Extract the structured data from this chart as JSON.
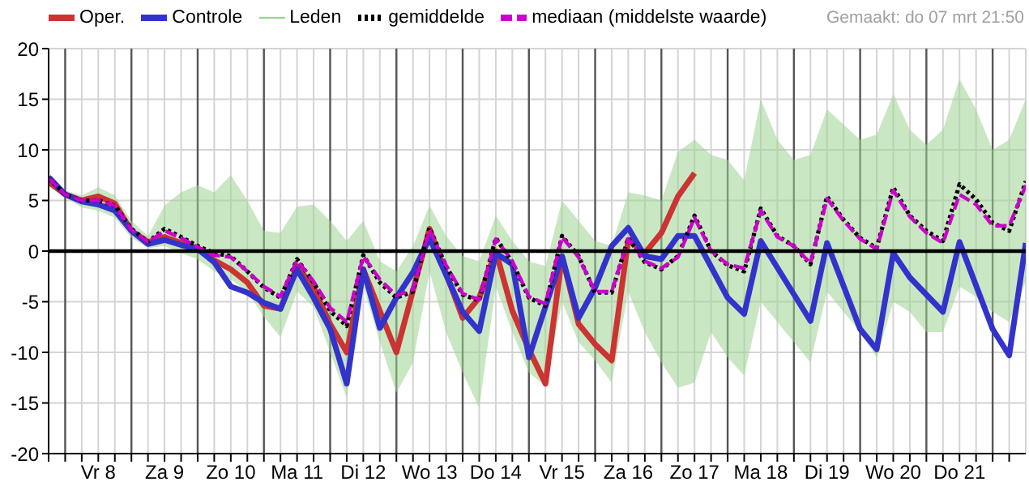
{
  "chart_data": {
    "type": "line",
    "annotations": [
      "Gemaakt: do 07 mrt 21:50"
    ],
    "xlim": [
      "--03-07T18:00",
      "--03-22T12:00"
    ],
    "xticks": [
      {
        "value": "--03-07T18:00",
        "label": null
      },
      {
        "value": "--03-08T00:00",
        "label": null
      },
      {
        "value": "--03-08T06:00",
        "label": null
      },
      {
        "value": "--03-08T12:00",
        "label": "Vr 8"
      },
      {
        "value": "--03-08T18:00",
        "label": null
      },
      {
        "value": "--03-09T00:00",
        "label": null
      },
      {
        "value": "--03-09T06:00",
        "label": null
      },
      {
        "value": "--03-09T12:00",
        "label": "Za 9"
      },
      {
        "value": "--03-09T18:00",
        "label": null
      },
      {
        "value": "--03-10T00:00",
        "label": null
      },
      {
        "value": "--03-10T06:00",
        "label": null
      },
      {
        "value": "--03-10T12:00",
        "label": "Zo 10"
      },
      {
        "value": "--03-10T18:00",
        "label": null
      },
      {
        "value": "--03-11T00:00",
        "label": null
      },
      {
        "value": "--03-11T06:00",
        "label": null
      },
      {
        "value": "--03-11T12:00",
        "label": "Ma 11"
      },
      {
        "value": "--03-11T18:00",
        "label": null
      },
      {
        "value": "--03-12T00:00",
        "label": null
      },
      {
        "value": "--03-12T06:00",
        "label": null
      },
      {
        "value": "--03-12T12:00",
        "label": "Di 12"
      },
      {
        "value": "--03-12T18:00",
        "label": null
      },
      {
        "value": "--03-13T00:00",
        "label": null
      },
      {
        "value": "--03-13T06:00",
        "label": null
      },
      {
        "value": "--03-13T12:00",
        "label": "Wo 13"
      },
      {
        "value": "--03-13T18:00",
        "label": null
      },
      {
        "value": "--03-14T00:00",
        "label": null
      },
      {
        "value": "--03-14T06:00",
        "label": null
      },
      {
        "value": "--03-14T12:00",
        "label": "Do 14"
      },
      {
        "value": "--03-14T18:00",
        "label": null
      },
      {
        "value": "--03-15T00:00",
        "label": null
      },
      {
        "value": "--03-15T06:00",
        "label": null
      },
      {
        "value": "--03-15T12:00",
        "label": "Vr 15"
      },
      {
        "value": "--03-15T18:00",
        "label": null
      },
      {
        "value": "--03-16T00:00",
        "label": null
      },
      {
        "value": "--03-16T06:00",
        "label": null
      },
      {
        "value": "--03-16T12:00",
        "label": "Za 16"
      },
      {
        "value": "--03-16T18:00",
        "label": null
      },
      {
        "value": "--03-17T00:00",
        "label": null
      },
      {
        "value": "--03-17T06:00",
        "label": null
      },
      {
        "value": "--03-17T12:00",
        "label": "Zo 17"
      },
      {
        "value": "--03-17T18:00",
        "label": null
      },
      {
        "value": "--03-18T00:00",
        "label": null
      },
      {
        "value": "--03-18T06:00",
        "label": null
      },
      {
        "value": "--03-18T12:00",
        "label": "Ma 18"
      },
      {
        "value": "--03-18T18:00",
        "label": null
      },
      {
        "value": "--03-19T00:00",
        "label": null
      },
      {
        "value": "--03-19T06:00",
        "label": null
      },
      {
        "value": "--03-19T12:00",
        "label": "Di 19"
      },
      {
        "value": "--03-19T18:00",
        "label": null
      },
      {
        "value": "--03-20T00:00",
        "label": null
      },
      {
        "value": "--03-20T06:00",
        "label": null
      },
      {
        "value": "--03-20T12:00",
        "label": "Wo 20"
      },
      {
        "value": "--03-20T18:00",
        "label": null
      },
      {
        "value": "--03-21T00:00",
        "label": null
      },
      {
        "value": "--03-21T06:00",
        "label": null
      },
      {
        "value": "--03-21T12:00",
        "label": "Do 21"
      },
      {
        "value": "--03-21T18:00",
        "label": null
      },
      {
        "value": "--03-22T00:00",
        "label": null
      },
      {
        "value": "--03-22T06:00",
        "label": null
      }
    ],
    "x": [
      "--03-07T18:00",
      "--03-08T00:00",
      "--03-08T06:00",
      "--03-08T12:00",
      "--03-08T18:00",
      "--03-09T00:00",
      "--03-09T06:00",
      "--03-09T12:00",
      "--03-09T18:00",
      "--03-10T00:00",
      "--03-10T06:00",
      "--03-10T12:00",
      "--03-10T18:00",
      "--03-11T00:00",
      "--03-11T06:00",
      "--03-11T12:00",
      "--03-11T18:00",
      "--03-12T00:00",
      "--03-12T06:00",
      "--03-12T12:00",
      "--03-12T18:00",
      "--03-13T00:00",
      "--03-13T06:00",
      "--03-13T12:00",
      "--03-13T18:00",
      "--03-14T00:00",
      "--03-14T06:00",
      "--03-14T12:00",
      "--03-14T18:00",
      "--03-15T00:00",
      "--03-15T06:00",
      "--03-15T12:00",
      "--03-15T18:00",
      "--03-16T00:00",
      "--03-16T06:00",
      "--03-16T12:00",
      "--03-16T18:00",
      "--03-17T00:00",
      "--03-17T06:00",
      "--03-17T12:00",
      "--03-17T18:00",
      "--03-18T00:00",
      "--03-18T06:00",
      "--03-18T12:00",
      "--03-18T18:00",
      "--03-19T00:00",
      "--03-19T06:00",
      "--03-19T12:00",
      "--03-19T18:00",
      "--03-20T00:00",
      "--03-20T06:00",
      "--03-20T12:00",
      "--03-20T18:00",
      "--03-21T00:00",
      "--03-21T06:00",
      "--03-21T12:00",
      "--03-21T18:00",
      "--03-22T00:00",
      "--03-22T06:00",
      "--03-22T12:00"
    ],
    "ylim": [
      -20,
      20
    ],
    "yticks": [
      -20,
      -15,
      -10,
      -5,
      0,
      5,
      10,
      15,
      20
    ],
    "grid": true,
    "legend": "top",
    "ref_lines": [
      {
        "axis": "y",
        "value": 0,
        "label": null,
        "color": "#000000"
      }
    ],
    "series": [
      {
        "name": "Oper.",
        "color": "#cc3333",
        "line_style": "solid",
        "x": [
          "--03-07T18:00",
          "--03-08T00:00",
          "--03-08T06:00",
          "--03-08T12:00",
          "--03-08T18:00",
          "--03-09T00:00",
          "--03-09T06:00",
          "--03-09T12:00",
          "--03-09T18:00",
          "--03-10T00:00",
          "--03-10T06:00",
          "--03-10T12:00",
          "--03-10T18:00",
          "--03-11T00:00",
          "--03-11T06:00",
          "--03-11T12:00",
          "--03-11T18:00",
          "--03-12T00:00",
          "--03-12T06:00",
          "--03-12T12:00",
          "--03-13T00:00",
          "--03-13T12:00",
          "--03-14T00:00",
          "--03-14T06:00",
          "--03-14T12:00",
          "--03-14T18:00",
          "--03-15T00:00",
          "--03-15T06:00",
          "--03-15T12:00",
          "--03-15T18:00",
          "--03-16T00:00",
          "--03-16T06:00",
          "--03-16T12:00",
          "--03-16T18:00",
          "--03-17T00:00",
          "--03-17T06:00",
          "--03-17T12:00"
        ],
        "values": [
          6.8,
          5.6,
          5,
          5.4,
          4.7,
          2,
          0.9,
          1.4,
          0.8,
          0.3,
          -0.9,
          -1.8,
          -3.1,
          -5.4,
          -5.7,
          -1.5,
          -3.6,
          -7.2,
          -10,
          -1.8,
          -10,
          2.2,
          -6.6,
          -4.6,
          0,
          -5.9,
          -9.7,
          -13.1,
          -0.5,
          -7.2,
          -9.2,
          -10.8,
          1.1,
          -0.2,
          1.8,
          5.4,
          7.7
        ]
      },
      {
        "name": "Controle",
        "color": "#3333cc",
        "line_style": "solid",
        "x": [
          "--03-07T18:00",
          "--03-08T00:00",
          "--03-08T06:00",
          "--03-08T12:00",
          "--03-08T18:00",
          "--03-09T00:00",
          "--03-09T06:00",
          "--03-09T12:00",
          "--03-09T18:00",
          "--03-10T00:00",
          "--03-10T06:00",
          "--03-10T12:00",
          "--03-10T18:00",
          "--03-11T00:00",
          "--03-11T06:00",
          "--03-11T12:00",
          "--03-11T18:00",
          "--03-12T00:00",
          "--03-12T06:00",
          "--03-12T12:00",
          "--03-12T18:00",
          "--03-13T00:00",
          "--03-13T06:00",
          "--03-13T12:00",
          "--03-14T00:00",
          "--03-14T06:00",
          "--03-14T12:00",
          "--03-14T18:00",
          "--03-15T00:00",
          "--03-15T12:00",
          "--03-15T18:00",
          "--03-16T00:00",
          "--03-16T06:00",
          "--03-16T12:00",
          "--03-16T18:00",
          "--03-17T00:00",
          "--03-17T06:00",
          "--03-17T12:00",
          "--03-18T00:00",
          "--03-18T06:00",
          "--03-18T12:00",
          "--03-19T06:00",
          "--03-19T12:00",
          "--03-20T00:00",
          "--03-20T06:00",
          "--03-20T12:00",
          "--03-20T18:00",
          "--03-21T06:00",
          "--03-21T12:00",
          "--03-22T00:00",
          "--03-22T06:00",
          "--03-22T12:00"
        ],
        "values": [
          7.3,
          5.6,
          4.9,
          4.6,
          4,
          2,
          0.7,
          1.1,
          0.6,
          0.2,
          -1.1,
          -3.5,
          -4.1,
          -5.1,
          -5.7,
          -1.8,
          -4.6,
          -7.7,
          -13.1,
          -1.8,
          -7.6,
          -4.6,
          -2.1,
          1.3,
          -6,
          -7.9,
          -0.2,
          -1.3,
          -10.5,
          -0.5,
          -6.6,
          -3.6,
          0.5,
          2.3,
          -0.5,
          -0.8,
          1.5,
          1.5,
          -4.6,
          -6.2,
          1,
          -6.9,
          0.8,
          -7.7,
          -9.7,
          -0.2,
          -2.6,
          -6,
          0.9,
          -7.7,
          -10.3,
          0.8
        ]
      },
      {
        "name": "Leden",
        "color": "#9fd494",
        "line_style": "solid",
        "values": [
          null,
          null,
          null,
          null,
          null,
          null,
          null,
          null,
          null,
          null,
          null,
          null,
          null,
          null,
          null,
          null,
          null,
          null,
          null,
          null,
          null,
          null,
          null,
          null,
          null,
          null,
          null,
          null,
          null,
          null,
          null,
          null,
          null,
          null,
          null,
          null,
          null,
          null,
          null,
          null,
          null,
          null,
          null,
          null,
          null,
          null,
          null,
          null,
          null,
          null,
          null,
          null,
          null,
          null,
          null,
          null,
          null,
          null,
          null,
          null
        ],
        "upper": [
          7.5,
          6,
          5.5,
          6.3,
          5.5,
          3,
          1.5,
          4.5,
          5.8,
          6.5,
          5.8,
          7.5,
          5,
          2,
          1.8,
          4.4,
          4.6,
          3,
          1,
          3,
          -1,
          -2,
          0.5,
          4.5,
          1.5,
          -0.5,
          -1,
          3.5,
          1,
          -1,
          -1.5,
          5,
          3,
          1,
          0.5,
          5.8,
          5.5,
          5,
          9.8,
          11,
          9.5,
          9,
          7,
          15,
          11,
          9,
          9.5,
          14,
          12.5,
          11,
          11.5,
          15.5,
          12,
          10.5,
          12,
          17,
          14,
          10,
          11,
          15
        ],
        "lower": [
          6.8,
          5.3,
          4.3,
          4,
          3.3,
          1.3,
          0.3,
          0.5,
          -0.2,
          -0.8,
          -2,
          -2.8,
          -4,
          -6.5,
          -8.5,
          -4,
          -5.5,
          -10,
          -14.5,
          -3.5,
          -9,
          -14,
          -11,
          -2,
          -8,
          -12,
          -15.5,
          -3.5,
          -8,
          -12,
          -13.3,
          -5,
          -9,
          -10.8,
          -13,
          -4,
          -8,
          -11,
          -13.5,
          -13,
          -8,
          -10.5,
          -12.3,
          -5,
          -7,
          -9,
          -11,
          -4,
          -6,
          -8,
          -10.5,
          -5,
          -6,
          -8,
          -8,
          -3.5,
          -4.5,
          -6,
          -7,
          -3
        ]
      },
      {
        "name": "gemiddelde",
        "color": "#000000",
        "line_style": "dotted",
        "values": [
          7.2,
          5.6,
          5,
          5,
          4.5,
          2.2,
          0.9,
          2.2,
          1.4,
          0.5,
          -0.2,
          -0.5,
          -2,
          -3.6,
          -4.6,
          -0.8,
          -3.1,
          -5.9,
          -7.4,
          -0.4,
          -3.1,
          -4.6,
          -4,
          2.3,
          -1.5,
          -4.3,
          -4.9,
          1.3,
          -1.1,
          -4.6,
          -5.4,
          1.5,
          -0.5,
          -4.1,
          -4.1,
          1.3,
          -1.1,
          -1.8,
          -0.5,
          3.5,
          0,
          -1.4,
          -2,
          4.2,
          1.5,
          0.5,
          -1.3,
          5.4,
          3.1,
          1.3,
          0.3,
          6.3,
          3.5,
          2,
          1,
          6.6,
          5.1,
          2.8,
          2,
          6.9
        ]
      },
      {
        "name": "mediaan (middelste waarde)",
        "color": "#cc00cc",
        "line_style": "dashed",
        "values": [
          7.2,
          5.6,
          5,
          5,
          4.5,
          2.1,
          0.9,
          2,
          1.3,
          0.4,
          -0.4,
          -0.6,
          -2,
          -3.5,
          -4.5,
          -0.9,
          -3,
          -5.6,
          -7,
          -0.5,
          -2.8,
          -4.4,
          -3.8,
          2.1,
          -1.4,
          -4.2,
          -4.8,
          1.2,
          -1,
          -4.5,
          -5.2,
          1.4,
          -0.6,
          -4,
          -4,
          1.2,
          -1,
          -1.7,
          -0.6,
          3.3,
          0,
          -1.3,
          -1.7,
          4,
          1.4,
          0.5,
          -1.2,
          5.2,
          3,
          1.2,
          0.2,
          6,
          3.4,
          1.8,
          0.8,
          5.6,
          4.6,
          2.5,
          2.5,
          6.5
        ]
      }
    ]
  }
}
